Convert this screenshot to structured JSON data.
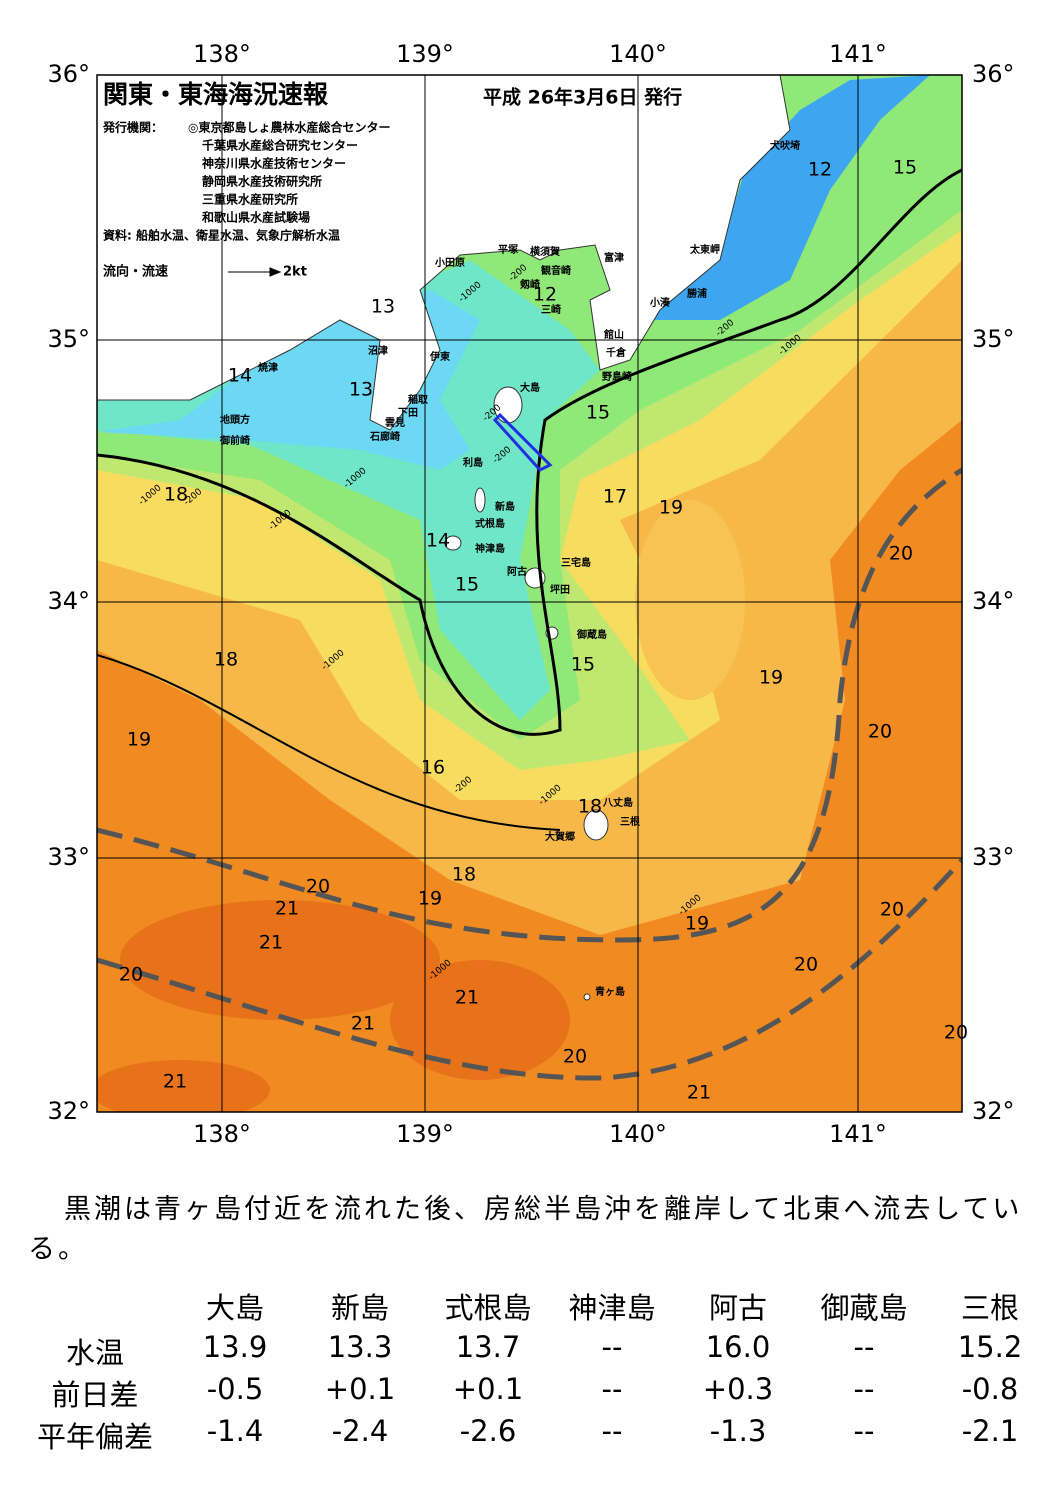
{
  "header": {
    "title": "関東・東海海況速報",
    "date": "平成 26年3月6日 発行",
    "publisher_label": "発行機関：",
    "publishers": [
      "◎東京都島しょ農林水産総合センター",
      "千葉県水産総合研究センター",
      "神奈川県水産技術センター",
      "静岡県水産技術研究所",
      "三重県水産研究所",
      "和歌山県水産試験場"
    ],
    "source": "資料: 船舶水温、衛星水温、気象庁解析水温",
    "legend": "流向・流速",
    "legend_scale": "2kt"
  },
  "map": {
    "lon_labels": [
      "138°",
      "139°",
      "140°",
      "141°"
    ],
    "lat_labels": [
      "36°",
      "35°",
      "34°",
      "33°",
      "32°"
    ],
    "places": [
      "犬吠埼",
      "太東岬",
      "勝浦",
      "小湊",
      "富津",
      "館山",
      "千倉",
      "野島崎",
      "横須賀",
      "観音崎",
      "平塚",
      "剱崎",
      "三崎",
      "小田原",
      "沼津",
      "伊東",
      "焼津",
      "地頭方",
      "御前崎",
      "稲取",
      "下田",
      "雲見",
      "石廊崎",
      "大島",
      "利島",
      "新島",
      "式根島",
      "神津島",
      "三宅島",
      "阿古",
      "坪田",
      "御蔵島",
      "八丈島",
      "三根",
      "大賀郷",
      "青ヶ島"
    ],
    "isotherm_labels": [
      "12",
      "15",
      "12",
      "13",
      "14",
      "13",
      "15",
      "18",
      "17",
      "19",
      "20",
      "14",
      "15",
      "18",
      "15",
      "19",
      "19",
      "20",
      "16",
      "18",
      "18",
      "20",
      "19",
      "21",
      "20",
      "19",
      "21",
      "20",
      "20",
      "21",
      "21",
      "20",
      "20",
      "21",
      "21"
    ],
    "depth_labels": [
      "-200",
      "-1000",
      "-200",
      "-1000",
      "-200",
      "-200",
      "-1000",
      "-200",
      "-1000",
      "-1000",
      "-1000",
      "-200",
      "-1000",
      "-1000",
      "-1000"
    ]
  },
  "summary": "黒潮は青ヶ島付近を流れた後、房総半島沖を離岸して北東へ流去している。",
  "table": {
    "columns": [
      "大島",
      "新島",
      "式根島",
      "神津島",
      "阿古",
      "御蔵島",
      "三根"
    ],
    "rows": [
      [
        "水温",
        "13.9",
        "13.3",
        "13.7",
        "--",
        "16.0",
        "--",
        "15.2"
      ],
      [
        "前日差",
        "-0.5",
        "+0.1",
        "+0.1",
        "--",
        "+0.3",
        "--",
        "-0.8"
      ],
      [
        "平年偏差",
        "-1.4",
        "-2.4",
        "-2.6",
        "--",
        "-1.3",
        "--",
        "-2.1"
      ]
    ]
  }
}
